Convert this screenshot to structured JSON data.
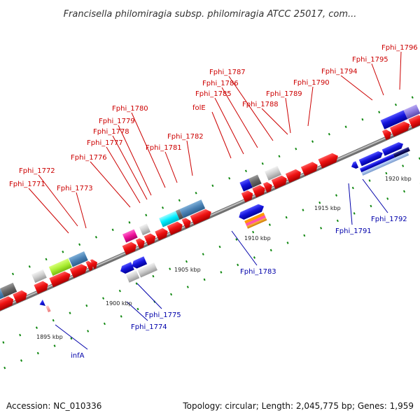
{
  "title": "Francisella philomiragia subsp. philomiragia ATCC 25017, com...",
  "footer": {
    "accession": "Accession: NC_010336",
    "summary": "Topology: circular; Length: 2,045,775 bp; Genes: 1,959"
  },
  "scale_labels": [
    "1895 kbp",
    "1900 kbp",
    "1905 kbp",
    "1910 kbp",
    "1915 kbp",
    "1920 kbp"
  ],
  "gene_labels_top": [
    "Fphi_1771",
    "Fphi_1772",
    "Fphi_1773",
    "Fphi_1776",
    "Fphi_1777",
    "Fphi_1778",
    "Fphi_1779",
    "Fphi_1780",
    "Fphi_1781",
    "Fphi_1782",
    "folE",
    "Fphi_1785",
    "Fphi_1786",
    "Fphi_1787",
    "Fphi_1788",
    "Fphi_1789",
    "Fphi_1790",
    "Fphi_1794",
    "Fphi_1795",
    "Fphi_1796"
  ],
  "gene_labels_bottom": [
    "infA",
    "Fphi_1774",
    "Fphi_1775",
    "Fphi_1783",
    "Fphi_1791",
    "Fphi_1792"
  ],
  "colors": {
    "forward_gene": "#ee1111",
    "reverse_gene": "#1111dd",
    "top_label": "#cc0000",
    "bottom_label": "#0000aa",
    "backbone": "#8a8a8a",
    "tick": "#118811"
  }
}
